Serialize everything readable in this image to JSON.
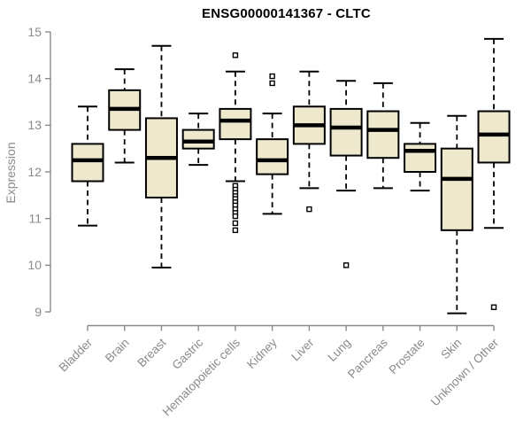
{
  "title": "ENSG00000141367 - CLTC",
  "y_axis": {
    "label": "Expression"
  },
  "colors": {
    "box_fill": "#EEE8CD",
    "box_stroke": "#000000",
    "median": "#000000",
    "axis": "#8a8a8a",
    "outlier_fill": "#ffffff",
    "background": "#ffffff",
    "title": "#000000"
  },
  "chart_data": {
    "type": "boxplot",
    "title": "ENSG00000141367 - CLTC",
    "xlabel": "",
    "ylabel": "Expression",
    "ylim": [
      9,
      15
    ],
    "yticks": [
      9,
      10,
      11,
      12,
      13,
      14,
      15
    ],
    "grid": false,
    "legend": "none",
    "categories": [
      "Bladder",
      "Brain",
      "Breast",
      "Gastric",
      "Hematopoietic cells",
      "Kidney",
      "Liver",
      "Lung",
      "Pancreas",
      "Prostate",
      "Skin",
      "Unknown / Other"
    ],
    "boxes": [
      {
        "category": "Bladder",
        "whisker_low": 10.85,
        "q1": 11.8,
        "median": 12.25,
        "q3": 12.6,
        "whisker_high": 13.4,
        "outliers": []
      },
      {
        "category": "Brain",
        "whisker_low": 12.2,
        "q1": 12.9,
        "median": 13.35,
        "q3": 13.75,
        "whisker_high": 14.2,
        "outliers": []
      },
      {
        "category": "Breast",
        "whisker_low": 9.95,
        "q1": 11.45,
        "median": 12.3,
        "q3": 13.15,
        "whisker_high": 14.7,
        "outliers": []
      },
      {
        "category": "Gastric",
        "whisker_low": 12.15,
        "q1": 12.5,
        "median": 12.65,
        "q3": 12.9,
        "whisker_high": 13.25,
        "outliers": []
      },
      {
        "category": "Hematopoietic cells",
        "whisker_low": 11.8,
        "q1": 12.7,
        "median": 13.1,
        "q3": 13.35,
        "whisker_high": 14.15,
        "outliers": [
          14.5,
          11.7,
          11.62,
          11.55,
          11.48,
          11.42,
          11.35,
          11.28,
          11.2,
          11.12,
          11.05,
          10.9,
          10.75
        ]
      },
      {
        "category": "Kidney",
        "whisker_low": 11.1,
        "q1": 11.95,
        "median": 12.25,
        "q3": 12.7,
        "whisker_high": 13.25,
        "outliers": [
          14.05,
          13.9
        ]
      },
      {
        "category": "Liver",
        "whisker_low": 11.65,
        "q1": 12.6,
        "median": 13.0,
        "q3": 13.4,
        "whisker_high": 14.15,
        "outliers": [
          11.2
        ]
      },
      {
        "category": "Lung",
        "whisker_low": 11.6,
        "q1": 12.35,
        "median": 12.95,
        "q3": 13.35,
        "whisker_high": 13.95,
        "outliers": [
          10.0
        ]
      },
      {
        "category": "Pancreas",
        "whisker_low": 11.65,
        "q1": 12.3,
        "median": 12.9,
        "q3": 13.3,
        "whisker_high": 13.9,
        "outliers": []
      },
      {
        "category": "Prostate",
        "whisker_low": 11.6,
        "q1": 12.0,
        "median": 12.45,
        "q3": 12.6,
        "whisker_high": 13.05,
        "outliers": []
      },
      {
        "category": "Skin",
        "whisker_low": 8.97,
        "q1": 10.75,
        "median": 11.85,
        "q3": 12.5,
        "whisker_high": 13.2,
        "outliers": []
      },
      {
        "category": "Unknown / Other",
        "whisker_low": 10.8,
        "q1": 12.2,
        "median": 12.8,
        "q3": 13.3,
        "whisker_high": 14.85,
        "outliers": [
          9.1
        ]
      }
    ]
  }
}
